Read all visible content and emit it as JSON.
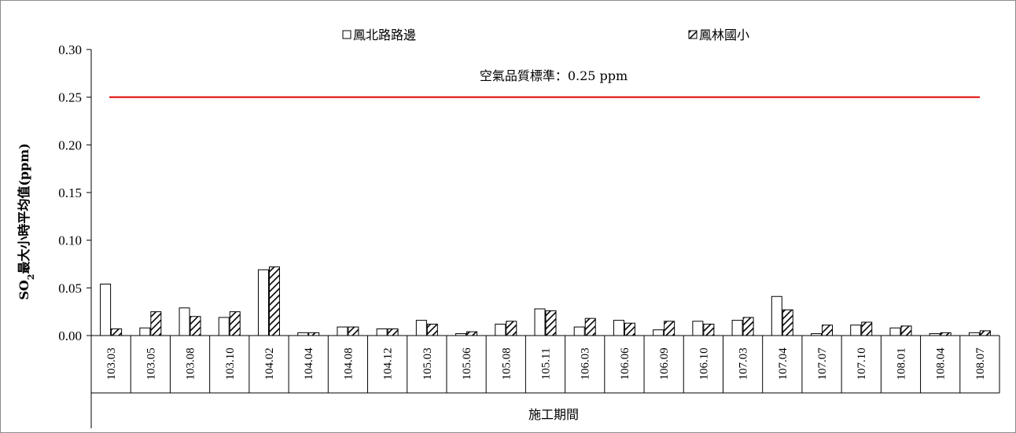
{
  "chart_data": {
    "type": "bar",
    "categories": [
      "103.03",
      "103.05",
      "103.08",
      "103.10",
      "104.02",
      "104.04",
      "104.08",
      "104.12",
      "105.03",
      "105.06",
      "105.08",
      "105.11",
      "106.03",
      "106.06",
      "106.09",
      "106.10",
      "107.03",
      "107.04",
      "107.07",
      "107.10",
      "108.01",
      "108.04",
      "108.07"
    ],
    "series": [
      {
        "name": "鳳北路路邊",
        "pattern": "hollow",
        "values": [
          0.054,
          0.008,
          0.029,
          0.019,
          0.069,
          0.003,
          0.009,
          0.007,
          0.016,
          0.002,
          0.012,
          0.028,
          0.009,
          0.016,
          0.006,
          0.015,
          0.016,
          0.041,
          0.002,
          0.011,
          0.008,
          0.002,
          0.003
        ]
      },
      {
        "name": "鳳林國小",
        "pattern": "hatched",
        "values": [
          0.007,
          0.025,
          0.02,
          0.025,
          0.072,
          0.003,
          0.009,
          0.007,
          0.012,
          0.004,
          0.015,
          0.026,
          0.018,
          0.013,
          0.015,
          0.012,
          0.019,
          0.027,
          0.011,
          0.014,
          0.01,
          0.003,
          0.005
        ]
      }
    ],
    "ylabel_main": "SO",
    "ylabel_sub": "2",
    "ylabel_rest": "最大小時平均值(ppm)",
    "xlabel": "施工期間",
    "ylim": [
      0,
      0.3
    ],
    "yticks": [
      "0.00",
      "0.05",
      "0.10",
      "0.15",
      "0.20",
      "0.25",
      "0.30"
    ],
    "reference_line": {
      "value": 0.25,
      "label": "空氣品質標準：0.25 ppm",
      "color": "#e00000"
    },
    "grid": false,
    "legend_position": "top"
  }
}
